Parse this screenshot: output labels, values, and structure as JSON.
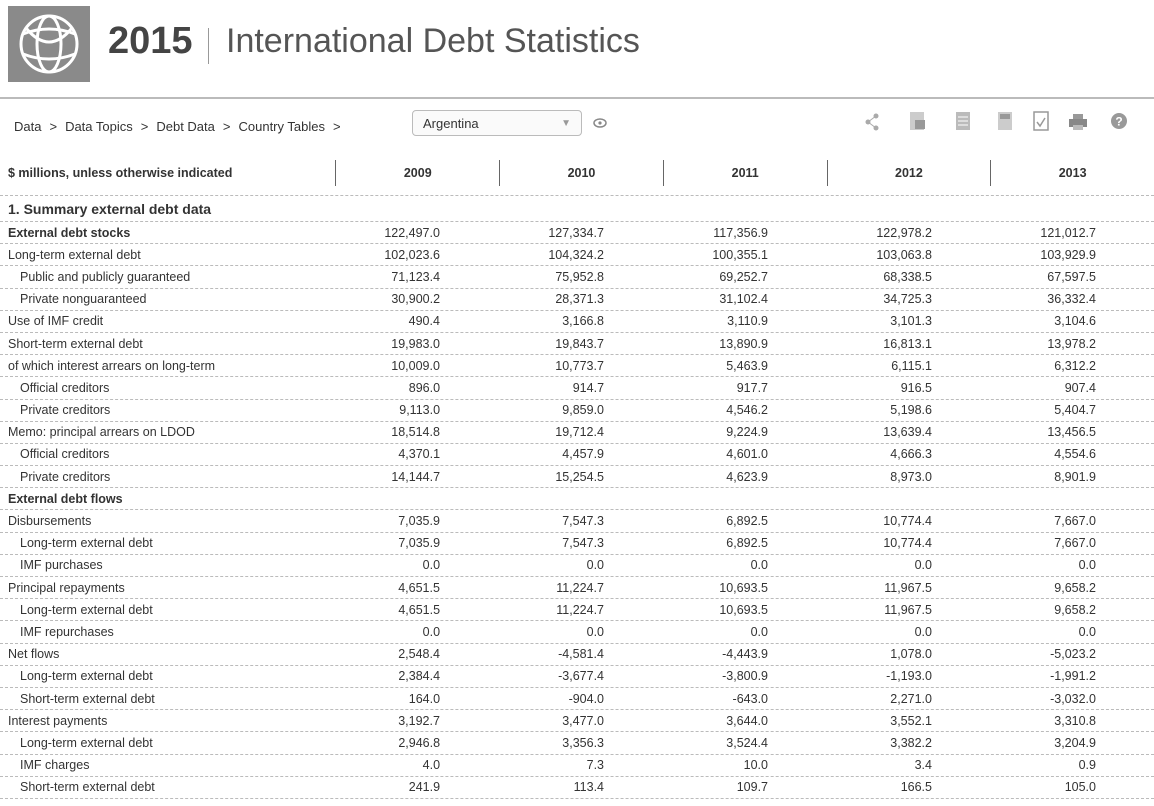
{
  "header": {
    "year": "2015",
    "title": "International Debt Statistics"
  },
  "breadcrumb": {
    "items": [
      "Data",
      "Data Topics",
      "Debt Data",
      "Country Tables"
    ],
    "separator": ">",
    "country": "Argentina"
  },
  "table": {
    "unit_note": "$ millions, unless otherwise indicated",
    "columns": [
      "2009",
      "2010",
      "2011",
      "2012",
      "2013"
    ],
    "section": "1. Summary external debt data",
    "groups": [
      {
        "heading": "External debt stocks",
        "values": [
          "122,497.0",
          "127,334.7",
          "117,356.9",
          "122,978.2",
          "121,012.7"
        ],
        "rows": [
          {
            "label": "Long-term external debt",
            "values": [
              "102,023.6",
              "104,324.2",
              "100,355.1",
              "103,063.8",
              "103,929.9"
            ],
            "children": [
              {
                "label": "Public and publicly guaranteed",
                "values": [
                  "71,123.4",
                  "75,952.8",
                  "69,252.7",
                  "68,338.5",
                  "67,597.5"
                ]
              },
              {
                "label": "Private nonguaranteed",
                "values": [
                  "30,900.2",
                  "28,371.3",
                  "31,102.4",
                  "34,725.3",
                  "36,332.4"
                ]
              }
            ]
          },
          {
            "label": "Use of IMF credit",
            "values": [
              "490.4",
              "3,166.8",
              "3,110.9",
              "3,101.3",
              "3,104.6"
            ]
          },
          {
            "label": "Short-term external debt",
            "values": [
              "19,983.0",
              "19,843.7",
              "13,890.9",
              "16,813.1",
              "13,978.2"
            ]
          },
          {
            "label": "of which interest arrears on long-term",
            "values": [
              "10,009.0",
              "10,773.7",
              "5,463.9",
              "6,115.1",
              "6,312.2"
            ],
            "children": [
              {
                "label": "Official creditors",
                "values": [
                  "896.0",
                  "914.7",
                  "917.7",
                  "916.5",
                  "907.4"
                ]
              },
              {
                "label": "Private creditors",
                "values": [
                  "9,113.0",
                  "9,859.0",
                  "4,546.2",
                  "5,198.6",
                  "5,404.7"
                ]
              }
            ]
          },
          {
            "label": "Memo: principal arrears on LDOD",
            "values": [
              "18,514.8",
              "19,712.4",
              "9,224.9",
              "13,639.4",
              "13,456.5"
            ],
            "children": [
              {
                "label": "Official creditors",
                "values": [
                  "4,370.1",
                  "4,457.9",
                  "4,601.0",
                  "4,666.3",
                  "4,554.6"
                ]
              },
              {
                "label": "Private creditors",
                "values": [
                  "14,144.7",
                  "15,254.5",
                  "4,623.9",
                  "8,973.0",
                  "8,901.9"
                ]
              }
            ]
          }
        ]
      },
      {
        "heading": "External debt flows",
        "rows": [
          {
            "label": "Disbursements",
            "values": [
              "7,035.9",
              "7,547.3",
              "6,892.5",
              "10,774.4",
              "7,667.0"
            ],
            "children": [
              {
                "label": "Long-term external debt",
                "values": [
                  "7,035.9",
                  "7,547.3",
                  "6,892.5",
                  "10,774.4",
                  "7,667.0"
                ]
              },
              {
                "label": "IMF purchases",
                "values": [
                  "0.0",
                  "0.0",
                  "0.0",
                  "0.0",
                  "0.0"
                ]
              }
            ]
          },
          {
            "label": "Principal repayments",
            "values": [
              "4,651.5",
              "11,224.7",
              "10,693.5",
              "11,967.5",
              "9,658.2"
            ],
            "children": [
              {
                "label": "Long-term external debt",
                "values": [
                  "4,651.5",
                  "11,224.7",
                  "10,693.5",
                  "11,967.5",
                  "9,658.2"
                ]
              },
              {
                "label": "IMF repurchases",
                "values": [
                  "0.0",
                  "0.0",
                  "0.0",
                  "0.0",
                  "0.0"
                ]
              }
            ]
          },
          {
            "label": "Net flows",
            "values": [
              "2,548.4",
              "-4,581.4",
              "-4,443.9",
              "1,078.0",
              "-5,023.2"
            ],
            "children": [
              {
                "label": "Long-term external debt",
                "values": [
                  "2,384.4",
                  "-3,677.4",
                  "-3,800.9",
                  "-1,193.0",
                  "-1,991.2"
                ]
              },
              {
                "label": "Short-term external debt",
                "values": [
                  "164.0",
                  "-904.0",
                  "-643.0",
                  "2,271.0",
                  "-3,032.0"
                ]
              }
            ]
          },
          {
            "label": "Interest payments",
            "values": [
              "3,192.7",
              "3,477.0",
              "3,644.0",
              "3,552.1",
              "3,310.8"
            ],
            "children": [
              {
                "label": "Long-term external debt",
                "values": [
                  "2,946.8",
                  "3,356.3",
                  "3,524.4",
                  "3,382.2",
                  "3,204.9"
                ]
              },
              {
                "label": "IMF charges",
                "values": [
                  "4.0",
                  "7.3",
                  "10.0",
                  "3.4",
                  "0.9"
                ]
              },
              {
                "label": "Short-term external debt",
                "values": [
                  "241.9",
                  "113.4",
                  "109.7",
                  "166.5",
                  "105.0"
                ]
              }
            ]
          }
        ]
      }
    ]
  }
}
